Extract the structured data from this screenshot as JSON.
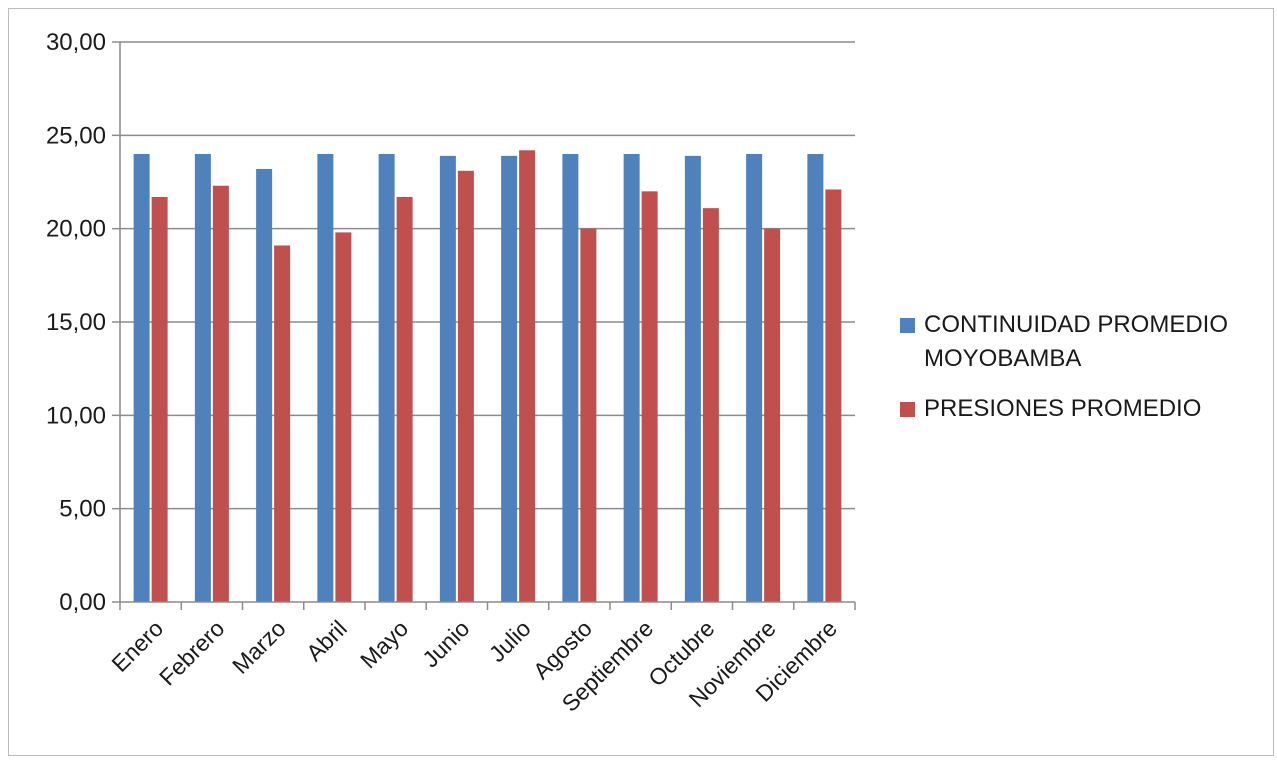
{
  "chart_data": {
    "type": "bar",
    "title": "",
    "xlabel": "",
    "ylabel": "",
    "categories": [
      "Enero",
      "Febrero",
      "Marzo",
      "Abril",
      "Mayo",
      "Junio",
      "Julio",
      "Agosto",
      "Septiembre",
      "Octubre",
      "Noviembre",
      "Diciembre"
    ],
    "series": [
      {
        "name": "CONTINUIDAD PROMEDIO MOYOBAMBA",
        "color": "#4f81bd",
        "values": [
          24.0,
          24.0,
          23.2,
          24.0,
          24.0,
          23.9,
          23.9,
          24.0,
          24.0,
          23.9,
          24.0,
          24.0
        ]
      },
      {
        "name": "PRESIONES PROMEDIO",
        "color": "#c0504d",
        "values": [
          21.7,
          22.3,
          19.1,
          19.8,
          21.7,
          23.1,
          24.2,
          20.0,
          22.0,
          21.1,
          20.0,
          22.1
        ]
      }
    ],
    "ylim": [
      0,
      30
    ],
    "yticks": [
      "0,00",
      "5,00",
      "10,00",
      "15,00",
      "20,00",
      "25,00",
      "30,00"
    ],
    "grid": true,
    "legend_position": "right"
  }
}
